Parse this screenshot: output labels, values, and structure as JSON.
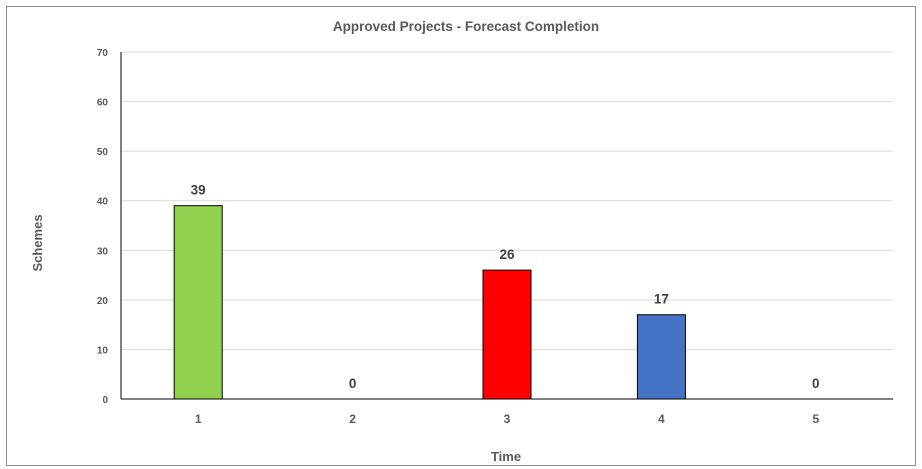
{
  "chart_data": {
    "type": "bar",
    "title": "Approved Projects - Forecast Completion",
    "xlabel": "Time",
    "ylabel": "Schemes",
    "categories": [
      "1",
      "2",
      "3",
      "4",
      "5"
    ],
    "values": [
      39,
      0,
      26,
      17,
      0
    ],
    "bar_colors": [
      "#92d050",
      "#7f7f7f",
      "#ff0000",
      "#4472c4",
      "#7f7f7f"
    ],
    "ylim": [
      0,
      70
    ],
    "yticks": [
      0,
      10,
      20,
      30,
      40,
      50,
      60,
      70
    ],
    "grid": true,
    "legend": "none"
  }
}
